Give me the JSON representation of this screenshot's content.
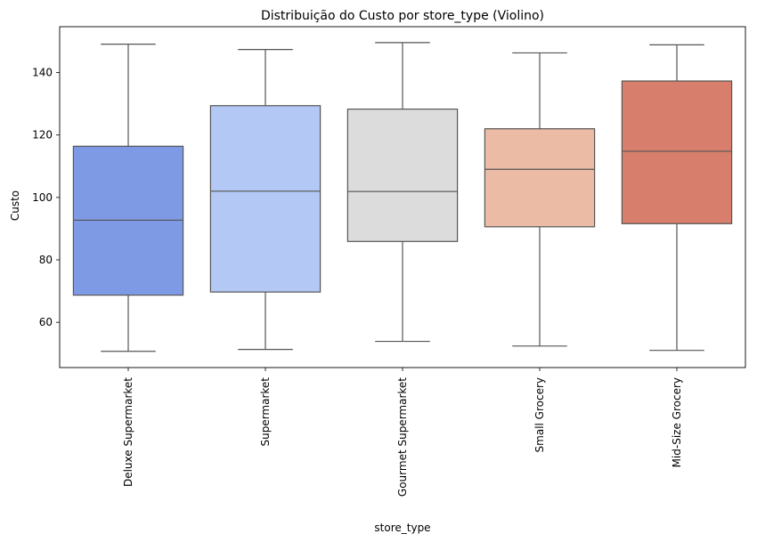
{
  "chart_data": {
    "type": "box",
    "title": "Distribuição do Custo por store_type (Violino)",
    "xlabel": "store_type",
    "ylabel": "Custo",
    "ylim": [
      45.5,
      154.7
    ],
    "yticks": [
      60,
      80,
      100,
      120,
      140
    ],
    "grid": false,
    "categories": [
      "Deluxe Supermarket",
      "Supermarket",
      "Gourmet Supermarket",
      "Small Grocery",
      "Mid-Size Grocery"
    ],
    "boxes": [
      {
        "category": "Deluxe Supermarket",
        "min": 50.7,
        "q1": 68.7,
        "median": 92.7,
        "q3": 116.4,
        "max": 149.1,
        "color": "#7f9ae5"
      },
      {
        "category": "Supermarket",
        "min": 51.3,
        "q1": 69.7,
        "median": 102.0,
        "q3": 129.4,
        "max": 147.4,
        "color": "#b3c8f4"
      },
      {
        "category": "Gourmet Supermarket",
        "min": 53.9,
        "q1": 85.9,
        "median": 101.9,
        "q3": 128.3,
        "max": 149.6,
        "color": "#dcdcdc"
      },
      {
        "category": "Small Grocery",
        "min": 52.4,
        "q1": 90.6,
        "median": 109.0,
        "q3": 122.0,
        "max": 146.3,
        "color": "#ecbba5"
      },
      {
        "category": "Mid-Size Grocery",
        "min": 51.0,
        "q1": 91.6,
        "median": 114.8,
        "q3": 137.3,
        "max": 148.9,
        "color": "#d77f6c"
      }
    ]
  }
}
